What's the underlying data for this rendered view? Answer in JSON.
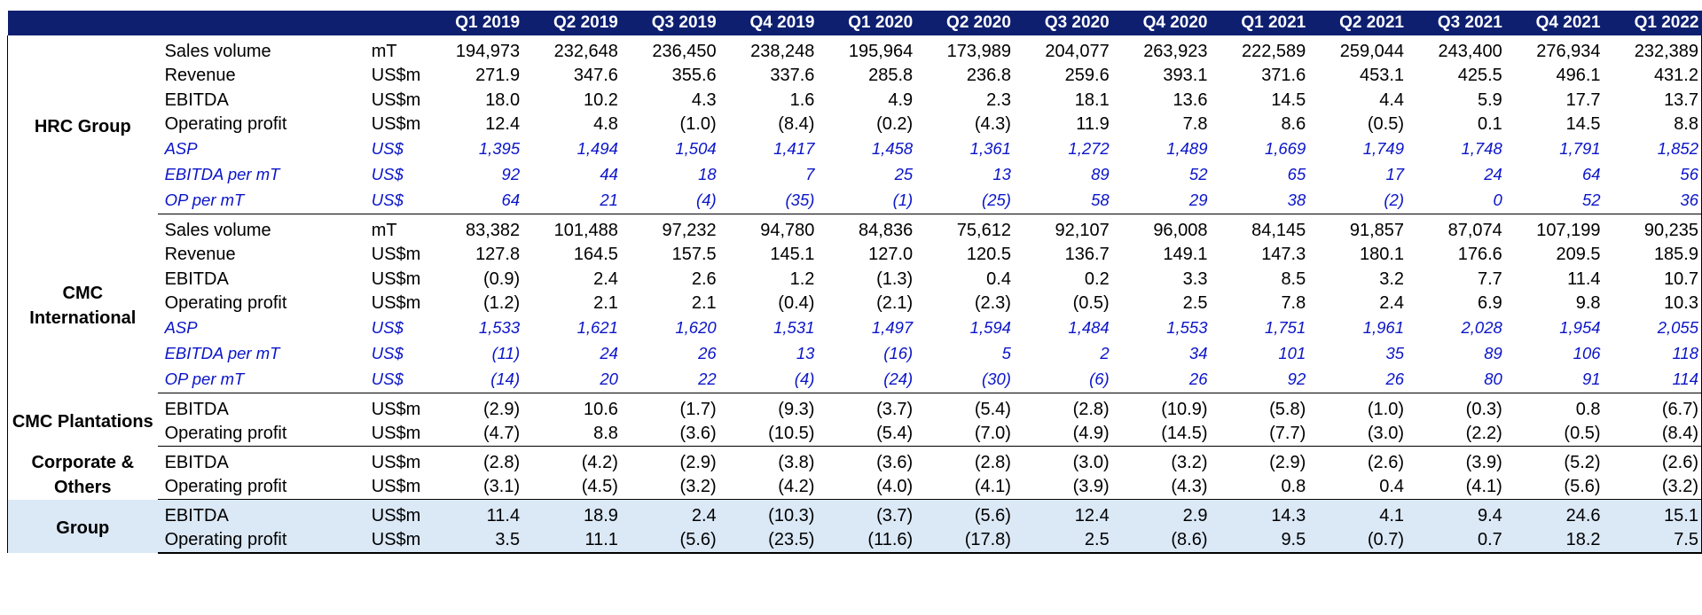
{
  "headers": [
    "Q1 2019",
    "Q2 2019",
    "Q3 2019",
    "Q4 2019",
    "Q1 2020",
    "Q2 2020",
    "Q3 2020",
    "Q4 2020",
    "Q1 2021",
    "Q2 2021",
    "Q3 2021",
    "Q4 2021",
    "Q1 2022"
  ],
  "segments": [
    {
      "name": "HRC Group",
      "rows": [
        {
          "metric": "Sales volume",
          "unit": "mT",
          "kpi": false,
          "values": [
            "194,973",
            "232,648",
            "236,450",
            "238,248",
            "195,964",
            "173,989",
            "204,077",
            "263,923",
            "222,589",
            "259,044",
            "243,400",
            "276,934",
            "232,389"
          ]
        },
        {
          "metric": "Revenue",
          "unit": "US$m",
          "kpi": false,
          "values": [
            "271.9",
            "347.6",
            "355.6",
            "337.6",
            "285.8",
            "236.8",
            "259.6",
            "393.1",
            "371.6",
            "453.1",
            "425.5",
            "496.1",
            "431.2"
          ]
        },
        {
          "metric": "EBITDA",
          "unit": "US$m",
          "kpi": false,
          "values": [
            "18.0",
            "10.2",
            "4.3",
            "1.6",
            "4.9",
            "2.3",
            "18.1",
            "13.6",
            "14.5",
            "4.4",
            "5.9",
            "17.7",
            "13.7"
          ]
        },
        {
          "metric": "Operating profit",
          "unit": "US$m",
          "kpi": false,
          "values": [
            "12.4",
            "4.8",
            "(1.0)",
            "(8.4)",
            "(0.2)",
            "(4.3)",
            "11.9",
            "7.8",
            "8.6",
            "(0.5)",
            "0.1",
            "14.5",
            "8.8"
          ]
        },
        {
          "metric": "ASP",
          "unit": "US$",
          "kpi": true,
          "values": [
            "1,395",
            "1,494",
            "1,504",
            "1,417",
            "1,458",
            "1,361",
            "1,272",
            "1,489",
            "1,669",
            "1,749",
            "1,748",
            "1,791",
            "1,852"
          ]
        },
        {
          "metric": "EBITDA per mT",
          "unit": "US$",
          "kpi": true,
          "values": [
            "92",
            "44",
            "18",
            "7",
            "25",
            "13",
            "89",
            "52",
            "65",
            "17",
            "24",
            "64",
            "56"
          ]
        },
        {
          "metric": "OP per mT",
          "unit": "US$",
          "kpi": true,
          "values": [
            "64",
            "21",
            "(4)",
            "(35)",
            "(1)",
            "(25)",
            "58",
            "29",
            "38",
            "(2)",
            "0",
            "52",
            "36"
          ]
        }
      ]
    },
    {
      "name": "CMC International",
      "rows": [
        {
          "metric": "Sales volume",
          "unit": "mT",
          "kpi": false,
          "values": [
            "83,382",
            "101,488",
            "97,232",
            "94,780",
            "84,836",
            "75,612",
            "92,107",
            "96,008",
            "84,145",
            "91,857",
            "87,074",
            "107,199",
            "90,235"
          ]
        },
        {
          "metric": "Revenue",
          "unit": "US$m",
          "kpi": false,
          "values": [
            "127.8",
            "164.5",
            "157.5",
            "145.1",
            "127.0",
            "120.5",
            "136.7",
            "149.1",
            "147.3",
            "180.1",
            "176.6",
            "209.5",
            "185.9"
          ]
        },
        {
          "metric": "EBITDA",
          "unit": "US$m",
          "kpi": false,
          "values": [
            "(0.9)",
            "2.4",
            "2.6",
            "1.2",
            "(1.3)",
            "0.4",
            "0.2",
            "3.3",
            "8.5",
            "3.2",
            "7.7",
            "11.4",
            "10.7"
          ]
        },
        {
          "metric": "Operating profit",
          "unit": "US$m",
          "kpi": false,
          "values": [
            "(1.2)",
            "2.1",
            "2.1",
            "(0.4)",
            "(2.1)",
            "(2.3)",
            "(0.5)",
            "2.5",
            "7.8",
            "2.4",
            "6.9",
            "9.8",
            "10.3"
          ]
        },
        {
          "metric": "ASP",
          "unit": "US$",
          "kpi": true,
          "values": [
            "1,533",
            "1,621",
            "1,620",
            "1,531",
            "1,497",
            "1,594",
            "1,484",
            "1,553",
            "1,751",
            "1,961",
            "2,028",
            "1,954",
            "2,055"
          ]
        },
        {
          "metric": "EBITDA per mT",
          "unit": "US$",
          "kpi": true,
          "values": [
            "(11)",
            "24",
            "26",
            "13",
            "(16)",
            "5",
            "2",
            "34",
            "101",
            "35",
            "89",
            "106",
            "118"
          ]
        },
        {
          "metric": "OP per mT",
          "unit": "US$",
          "kpi": true,
          "values": [
            "(14)",
            "20",
            "22",
            "(4)",
            "(24)",
            "(30)",
            "(6)",
            "26",
            "92",
            "26",
            "80",
            "91",
            "114"
          ]
        }
      ]
    },
    {
      "name": "CMC Plantations",
      "rows": [
        {
          "metric": "EBITDA",
          "unit": "US$m",
          "kpi": false,
          "values": [
            "(2.9)",
            "10.6",
            "(1.7)",
            "(9.3)",
            "(3.7)",
            "(5.4)",
            "(2.8)",
            "(10.9)",
            "(5.8)",
            "(1.0)",
            "(0.3)",
            "0.8",
            "(6.7)"
          ]
        },
        {
          "metric": "Operating profit",
          "unit": "US$m",
          "kpi": false,
          "values": [
            "(4.7)",
            "8.8",
            "(3.6)",
            "(10.5)",
            "(5.4)",
            "(7.0)",
            "(4.9)",
            "(14.5)",
            "(7.7)",
            "(3.0)",
            "(2.2)",
            "(0.5)",
            "(8.4)"
          ]
        }
      ]
    },
    {
      "name": "Corporate & Others",
      "rows": [
        {
          "metric": "EBITDA",
          "unit": "US$m",
          "kpi": false,
          "values": [
            "(2.8)",
            "(4.2)",
            "(2.9)",
            "(3.8)",
            "(3.6)",
            "(2.8)",
            "(3.0)",
            "(3.2)",
            "(2.9)",
            "(2.6)",
            "(3.9)",
            "(5.2)",
            "(2.6)"
          ]
        },
        {
          "metric": "Operating profit",
          "unit": "US$m",
          "kpi": false,
          "values": [
            "(3.1)",
            "(4.5)",
            "(3.2)",
            "(4.2)",
            "(4.0)",
            "(4.1)",
            "(3.9)",
            "(4.3)",
            "0.8",
            "0.4",
            "(4.1)",
            "(5.6)",
            "(3.2)"
          ]
        }
      ]
    },
    {
      "name": "Group",
      "highlight": true,
      "rows": [
        {
          "metric": "EBITDA",
          "unit": "US$m",
          "kpi": false,
          "values": [
            "11.4",
            "18.9",
            "2.4",
            "(10.3)",
            "(3.7)",
            "(5.6)",
            "12.4",
            "2.9",
            "14.3",
            "4.1",
            "9.4",
            "24.6",
            "15.1"
          ]
        },
        {
          "metric": "Operating profit",
          "unit": "US$m",
          "kpi": false,
          "values": [
            "3.5",
            "11.1",
            "(5.6)",
            "(23.5)",
            "(11.6)",
            "(17.8)",
            "2.5",
            "(8.6)",
            "9.5",
            "(0.7)",
            "0.7",
            "18.2",
            "7.5"
          ]
        }
      ]
    }
  ]
}
